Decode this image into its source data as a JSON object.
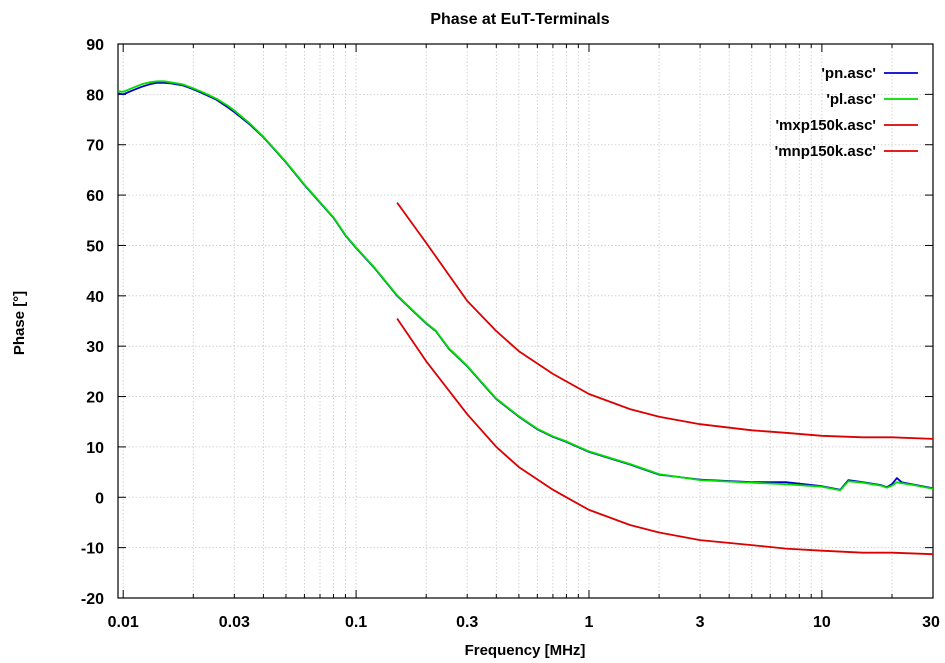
{
  "chart_data": {
    "type": "line",
    "title": "Phase at EuT-Terminals",
    "xlabel": "Frequency [MHz]",
    "ylabel": "Phase [°]",
    "xscale": "log",
    "xlim": [
      0.0095,
      30
    ],
    "ylim": [
      -20,
      90
    ],
    "xticks": [
      0.01,
      0.03,
      0.1,
      0.3,
      1,
      3,
      10,
      30
    ],
    "xtick_labels": [
      "0.01",
      "0.03",
      "0.1",
      "0.3",
      "1",
      "3",
      "10",
      "30"
    ],
    "yticks": [
      -20,
      -10,
      0,
      10,
      20,
      30,
      40,
      50,
      60,
      70,
      80,
      90
    ],
    "ytick_labels": [
      "-20",
      "-10",
      "0",
      "10",
      "20",
      "30",
      "40",
      "50",
      "60",
      "70",
      "80",
      "90"
    ],
    "grid": true,
    "legend_position": "top-right",
    "series": [
      {
        "name": "'pn.asc'",
        "color": "#0000cc",
        "x": [
          0.0095,
          0.01,
          0.011,
          0.012,
          0.013,
          0.014,
          0.015,
          0.016,
          0.018,
          0.02,
          0.022,
          0.025,
          0.028,
          0.03,
          0.035,
          0.04,
          0.05,
          0.06,
          0.07,
          0.08,
          0.09,
          0.1,
          0.12,
          0.15,
          0.18,
          0.2,
          0.22,
          0.25,
          0.3,
          0.35,
          0.4,
          0.5,
          0.6,
          0.7,
          0.8,
          1,
          1.5,
          2,
          3,
          5,
          7,
          10,
          12,
          13,
          15,
          18,
          19,
          20,
          21,
          22,
          25,
          30
        ],
        "y": [
          80.2,
          80,
          80.8,
          81.5,
          82,
          82.3,
          82.3,
          82.2,
          81.8,
          81,
          80.2,
          79,
          77.5,
          76.5,
          74,
          71.5,
          66.5,
          62,
          58.5,
          55.5,
          52,
          49.5,
          45.5,
          40,
          36.5,
          34.5,
          33,
          29.5,
          26,
          22.5,
          19.5,
          16,
          13.5,
          12,
          11,
          9,
          6.5,
          4.5,
          3.5,
          3,
          3,
          2.2,
          1.5,
          3.4,
          3,
          2.4,
          2,
          2.6,
          3.8,
          3,
          2.5,
          1.8
        ]
      },
      {
        "name": "'pl.asc'",
        "color": "#00dd00",
        "x": [
          0.0095,
          0.01,
          0.011,
          0.012,
          0.013,
          0.014,
          0.015,
          0.016,
          0.018,
          0.02,
          0.022,
          0.025,
          0.028,
          0.03,
          0.035,
          0.04,
          0.05,
          0.06,
          0.07,
          0.08,
          0.09,
          0.1,
          0.12,
          0.15,
          0.18,
          0.2,
          0.22,
          0.25,
          0.3,
          0.35,
          0.4,
          0.5,
          0.6,
          0.7,
          0.8,
          1,
          1.5,
          2,
          3,
          5,
          7,
          10,
          12,
          13,
          15,
          18,
          19,
          20,
          21,
          22,
          25,
          30
        ],
        "y": [
          80.6,
          80.5,
          81.3,
          82,
          82.4,
          82.6,
          82.6,
          82.4,
          82,
          81.2,
          80.4,
          79.2,
          77.8,
          76.8,
          74.2,
          71.6,
          66.6,
          62.1,
          58.6,
          55.6,
          52.1,
          49.6,
          45.6,
          40.1,
          36.6,
          34.6,
          33.1,
          29.6,
          26.1,
          22.6,
          19.6,
          16.1,
          13.6,
          12.1,
          11.1,
          9.1,
          6.6,
          4.6,
          3.4,
          2.9,
          2.6,
          2.1,
          1.4,
          3.2,
          2.9,
          2.3,
          1.9,
          2.3,
          3,
          2.8,
          2.4,
          1.7
        ]
      },
      {
        "name": "'mxp150k.asc'",
        "color": "#dd0000",
        "x": [
          0.15,
          0.2,
          0.3,
          0.4,
          0.5,
          0.7,
          1,
          1.5,
          2,
          3,
          5,
          7,
          10,
          15,
          20,
          30
        ],
        "y": [
          58.5,
          50.5,
          39,
          33,
          29,
          24.5,
          20.5,
          17.5,
          16,
          14.5,
          13.3,
          12.8,
          12.2,
          11.9,
          11.9,
          11.6
        ]
      },
      {
        "name": "'mnp150k.asc'",
        "color": "#dd0000",
        "x": [
          0.15,
          0.2,
          0.3,
          0.4,
          0.5,
          0.7,
          0.8,
          1,
          1.5,
          2,
          3,
          5,
          7,
          10,
          15,
          20,
          30
        ],
        "y": [
          35.5,
          27,
          16.5,
          10,
          6,
          1.5,
          0,
          -2.5,
          -5.5,
          -7,
          -8.5,
          -9.5,
          -10.2,
          -10.6,
          -11,
          -11,
          -11.3
        ]
      }
    ]
  }
}
